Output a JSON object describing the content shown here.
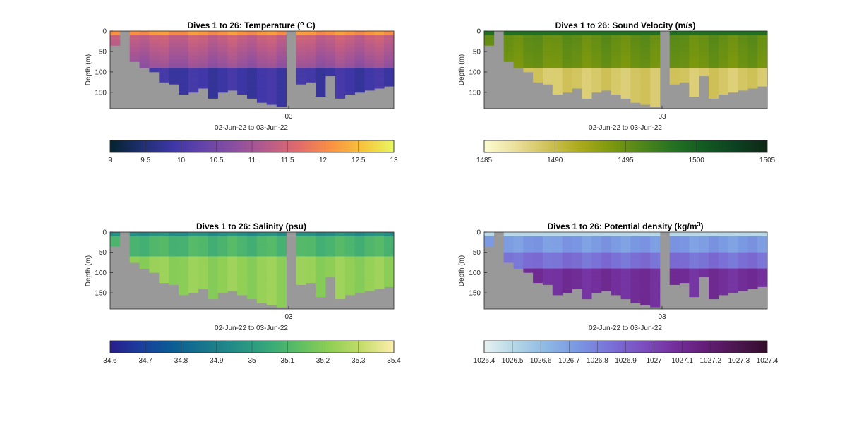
{
  "chart_data": [
    {
      "type": "heatmap",
      "title": "Dives 1 to 26: Temperature (",
      "title_sup": "o",
      "title_end": " C)",
      "ylabel": "Depth (m)",
      "xlabel": "02-Jun-22 to 03-Jun-22",
      "x_tick": "03",
      "y_ticks": [
        "0",
        "50",
        "100",
        "150"
      ],
      "ylim": [
        0,
        190
      ],
      "colorbar": {
        "colormap": "thermal",
        "min": 9,
        "max": 13,
        "ticks": [
          "9",
          "9.5",
          "10",
          "10.5",
          "11",
          "11.5",
          "12",
          "12.5",
          "13"
        ]
      },
      "n_dives": 26
    },
    {
      "type": "heatmap",
      "title": "Dives 1 to 26: Sound Velocity (m/s)",
      "title_sup": "",
      "title_end": "",
      "ylabel": "Depth (m)",
      "xlabel": "02-Jun-22 to 03-Jun-22",
      "x_tick": "03",
      "y_ticks": [
        "0",
        "50",
        "100",
        "150"
      ],
      "ylim": [
        0,
        190
      ],
      "colorbar": {
        "colormap": "speed",
        "min": 1485,
        "max": 1505,
        "ticks": [
          "1485",
          "1490",
          "1495",
          "1500",
          "1505"
        ]
      },
      "n_dives": 26
    },
    {
      "type": "heatmap",
      "title": "Dives 1 to 26: Salinity (psu)",
      "title_sup": "",
      "title_end": "",
      "ylabel": "Depth (m)",
      "xlabel": "02-Jun-22 to 03-Jun-22",
      "x_tick": "03",
      "y_ticks": [
        "0",
        "50",
        "100",
        "150"
      ],
      "ylim": [
        0,
        190
      ],
      "colorbar": {
        "colormap": "haline",
        "min": 34.6,
        "max": 35.4,
        "ticks": [
          "34.6",
          "34.7",
          "34.8",
          "34.9",
          "35",
          "35.1",
          "35.2",
          "35.3",
          "35.4"
        ]
      },
      "n_dives": 26
    },
    {
      "type": "heatmap",
      "title": "Dives 1 to 26: Potential density (kg/m",
      "title_sup": "3",
      "title_end": ")",
      "ylabel": "Depth (m)",
      "xlabel": "02-Jun-22 to 03-Jun-22",
      "x_tick": "03",
      "y_ticks": [
        "0",
        "50",
        "100",
        "150"
      ],
      "ylim": [
        0,
        190
      ],
      "colorbar": {
        "colormap": "dense",
        "min": 1026.4,
        "max": 1027.4,
        "ticks": [
          "1026.4",
          "1026.5",
          "1026.6",
          "1026.7",
          "1026.8",
          "1026.9",
          "1027",
          "1027.1",
          "1027.2",
          "1027.3",
          "1027.4"
        ]
      },
      "n_dives": 26
    }
  ],
  "colormaps": {
    "thermal": [
      "#04232e",
      "#1f2f70",
      "#3e36a8",
      "#6644a9",
      "#8d4fa0",
      "#b85b8a",
      "#e26b6a",
      "#f99142",
      "#f7c43c",
      "#e8f860"
    ],
    "speed": [
      "#fdfbcf",
      "#ebdf9c",
      "#d0c25a",
      "#adab1c",
      "#7f990d",
      "#50861a",
      "#257222",
      "#125a22",
      "#0c4122",
      "#0f2716"
    ],
    "haline": [
      "#291e8c",
      "#193f9b",
      "#0b5d94",
      "#18768c",
      "#258e86",
      "#35a77a",
      "#5ebe64",
      "#91cf55",
      "#c6dd6d",
      "#fdeeae"
    ],
    "dense": [
      "#e6f1f1",
      "#b3d6e6",
      "#8db8e4",
      "#7a96e2",
      "#7a72d6",
      "#7b50bf",
      "#74319e",
      "#641e78",
      "#4d1651",
      "#330c2a"
    ]
  },
  "missing_color": "#999999"
}
